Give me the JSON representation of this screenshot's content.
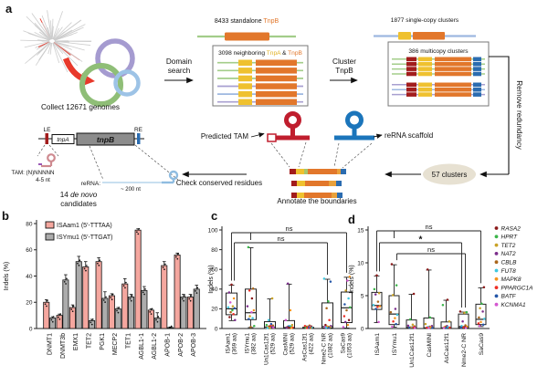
{
  "panel_a": {
    "label": "a",
    "collect_caption": "Collect 12671 genomes",
    "domain_1": "Domain",
    "domain_2": "search",
    "cluster_1": "Cluster",
    "cluster_2": "TnpB",
    "standalone_pre": "8433 standalone ",
    "standalone_tnpb": "TnpB",
    "neighboring_pre": "3098 neighboring ",
    "neighboring_tnpa": "TnpA",
    "neighboring_amp": " & ",
    "neighboring_tnpb": "TnpB",
    "single_copy": "1877 single-copy clusters",
    "multicopy": "386 multicopy clusters",
    "remove_redundancy": "Remove redundancy",
    "clusters_count": "57 clusters",
    "annotate": "Annotate the boundaries",
    "predicted_tam": "Predicted TAM",
    "rerna_scaffold": "reRNA scaffold",
    "check_residues": "Check conserved residues",
    "le": "LE",
    "re": "RE",
    "tnpa_gene": "tnpA",
    "tnpb_gene": "tnpB",
    "tam_seq": "TAM: (N)NNNNN",
    "tam_len": "4-5 nt",
    "rerna_label": "reRNA:",
    "rerna_len": "~ 200 nt",
    "cand_pre": "14 ",
    "cand_italic": "de novo",
    "cand_2": "candidates"
  },
  "panel_labels": {
    "b": "b",
    "c": "c",
    "d": "d"
  },
  "colors": {
    "tnpb_orange": "#E2772B",
    "tnpa_yellow": "#EFC12F",
    "lere_red": "#A21C1C",
    "lere_blue": "#2B6CB0",
    "green_line": "#A3CD8A",
    "purple_line": "#A89FD0",
    "blue_line": "#9DB8E0",
    "red_hairpin": "#C01E2E",
    "blue_hairpin": "#1B75BB",
    "bar_pink": "#F5A79F",
    "bar_gray": "#ACACAC"
  },
  "chart_data": [
    {
      "type": "bar",
      "ylabel": "Indels (%)",
      "ylim": [
        0,
        80
      ],
      "yticks": [
        0,
        20,
        40,
        60,
        80
      ],
      "categories": [
        "DNMT1",
        "DNMT3b",
        "EMX1",
        "TET2",
        "PGK1",
        "MECP2",
        "TET1",
        "AGBL1-1",
        "AGBL1-2",
        "APOB-1",
        "APOB-2",
        "APOB-3"
      ],
      "series": [
        {
          "name": "ISAam1 (5′-TTTAA)",
          "color": "#F5A79F",
          "values": [
            20,
            10,
            16,
            47,
            51,
            25,
            34,
            75,
            14,
            48,
            56,
            24
          ],
          "errors": [
            2,
            1,
            2,
            4,
            3,
            1.5,
            4,
            1,
            1,
            3,
            1.5,
            2
          ]
        },
        {
          "name": "ISYmu1 (5′-TTGAT)",
          "color": "#ACACAC",
          "values": [
            8,
            37,
            51,
            6,
            23,
            15,
            24,
            29,
            8,
            0.7,
            24,
            30
          ],
          "errors": [
            1,
            4,
            4,
            1,
            5,
            1,
            2,
            3,
            4,
            0.5,
            2,
            3
          ]
        }
      ]
    },
    {
      "type": "box",
      "ylabel": "Indels (%)",
      "ylim": [
        0,
        100
      ],
      "yticks": [
        0,
        20,
        40,
        60,
        80,
        100
      ],
      "categories": [
        [
          "ISAam1",
          "(369 aa)"
        ],
        [
          "ISYmu1",
          "(382 aa)"
        ],
        [
          "Un1Cas12f1",
          "(529 aa)"
        ],
        [
          "CasMINI",
          "(529 aa)"
        ],
        [
          "AsCas12f1",
          "(422 aa)"
        ],
        [
          "Nme2-C NR",
          "(1082 aa)"
        ],
        [
          "SaCas9",
          "(1053 aa)"
        ]
      ],
      "boxes": [
        {
          "lo": 8,
          "q1": 14,
          "med": 20,
          "q3": 36,
          "hi": 44
        },
        {
          "lo": 1,
          "q1": 9,
          "med": 16,
          "q3": 40,
          "hi": 82
        },
        {
          "lo": 0,
          "q1": 0,
          "med": 1.5,
          "q3": 7,
          "hi": 30
        },
        {
          "lo": 0,
          "q1": 0,
          "med": 1,
          "q3": 8,
          "hi": 45
        },
        {
          "lo": 0,
          "q1": 0,
          "med": 0.3,
          "q3": 1.2,
          "hi": 2.5
        },
        {
          "lo": 0,
          "q1": 0.5,
          "med": 2,
          "q3": 26,
          "hi": 50
        },
        {
          "lo": 0.5,
          "q1": 6,
          "med": 21,
          "q3": 37,
          "hi": 52
        }
      ],
      "points": [
        [
          44,
          36,
          30,
          26,
          22,
          21,
          20,
          18,
          16,
          14,
          11,
          8
        ],
        [
          82,
          40,
          38,
          30,
          22,
          18,
          16,
          12,
          10,
          9,
          2,
          1
        ],
        [
          30,
          8,
          4,
          3,
          2.5,
          2,
          1.5,
          1,
          0.8,
          0.5,
          0.3,
          0
        ],
        [
          45,
          18,
          8,
          3,
          2,
          1.5,
          1,
          0.8,
          0.5,
          0.3,
          0.2,
          0
        ],
        [
          2.5,
          2,
          1.5,
          1.2,
          1,
          0.8,
          0.5,
          0.4,
          0.3,
          0.2,
          0.1,
          0
        ],
        [
          50,
          47,
          27,
          20,
          8,
          3,
          2,
          1.5,
          1,
          0.8,
          0.4,
          0
        ],
        [
          52,
          48,
          38,
          30,
          24,
          21,
          18,
          12,
          8,
          6,
          3,
          1
        ]
      ],
      "brackets": [
        {
          "i": 0,
          "j": 6,
          "label": "ns",
          "tick": 1
        },
        {
          "i": 0,
          "j": 5,
          "label": "ns",
          "dxI": 3
        }
      ]
    },
    {
      "type": "box",
      "ylabel": "Indels (%)",
      "ylim": [
        0,
        15
      ],
      "yticks": [
        0,
        5,
        10,
        15
      ],
      "categories": [
        "ISAam1",
        "ISYmu1",
        "Un1Cas12f1",
        "CasMINI",
        "AsCas12f1",
        "Nme2-C NR",
        "SaCas9"
      ],
      "boxes": [
        {
          "lo": 0.9,
          "q1": 2.9,
          "med": 3.5,
          "q3": 5.5,
          "hi": 8.0
        },
        {
          "lo": 0.2,
          "q1": 0.6,
          "med": 2.2,
          "q3": 5.0,
          "hi": 9.7
        },
        {
          "lo": 0,
          "q1": 0,
          "med": 0.15,
          "q3": 1.3,
          "hi": 5.2
        },
        {
          "lo": 0,
          "q1": 0,
          "med": 0.1,
          "q3": 1.6,
          "hi": 8.9
        },
        {
          "lo": 0,
          "q1": 0,
          "med": 0.1,
          "q3": 1.0,
          "hi": 4.3
        },
        {
          "lo": 0,
          "q1": 0.1,
          "med": 0.3,
          "q3": 2.2,
          "hi": 2.5
        },
        {
          "lo": 0.3,
          "q1": 0.6,
          "med": 1.4,
          "q3": 3.7,
          "hi": 6.2
        }
      ],
      "points": [
        [
          8.0,
          5.9,
          5.3,
          5.1,
          4.0,
          3.5,
          3.3,
          3.2,
          2.9,
          0.9
        ],
        [
          9.7,
          6.5,
          5.0,
          2.9,
          2.4,
          2.0,
          1.5,
          1.0,
          0.6,
          0.2
        ],
        [
          5.2,
          1.3,
          0.5,
          0.35,
          0.25,
          0.15,
          0.1,
          0.1,
          0.05,
          0
        ],
        [
          8.9,
          1.6,
          0.6,
          0.3,
          0.2,
          0.15,
          0.1,
          0.05,
          0,
          0
        ],
        [
          4.3,
          3.5,
          1.0,
          0.3,
          0.2,
          0.15,
          0.1,
          0.05,
          0,
          0
        ],
        [
          2.5,
          2.4,
          2.3,
          1.0,
          0.4,
          0.3,
          0.2,
          0.1,
          0.05,
          0
        ],
        [
          6.2,
          3.7,
          3.0,
          2.5,
          1.6,
          1.4,
          0.9,
          0.7,
          0.5,
          0.3
        ]
      ],
      "brackets": [
        {
          "i": 0,
          "j": 6,
          "label": "ns",
          "tick": 1
        },
        {
          "i": 0,
          "j": 5,
          "label": "*",
          "dxI": 3,
          "dxJ": -2
        },
        {
          "i": 1,
          "j": 5,
          "label": "ns",
          "dxI": 3,
          "dxJ": 2
        }
      ],
      "legend": {
        "genes": [
          {
            "name": "RASA2",
            "color": "#8B1A1A"
          },
          {
            "name": "HPRT",
            "color": "#3BB54A"
          },
          {
            "name": "TET2",
            "color": "#C9A227"
          },
          {
            "name": "NAT2",
            "color": "#7B2D8B"
          },
          {
            "name": "CBLB",
            "color": "#A9651B"
          },
          {
            "name": "FUT8",
            "color": "#40C8E0"
          },
          {
            "name": "MAPK8",
            "color": "#F7941D"
          },
          {
            "name": "PPARGC1A",
            "color": "#EE2E24"
          },
          {
            "name": "BATF",
            "color": "#2456A8"
          },
          {
            "name": "KCNMA1",
            "color": "#D457D0"
          }
        ]
      }
    }
  ]
}
